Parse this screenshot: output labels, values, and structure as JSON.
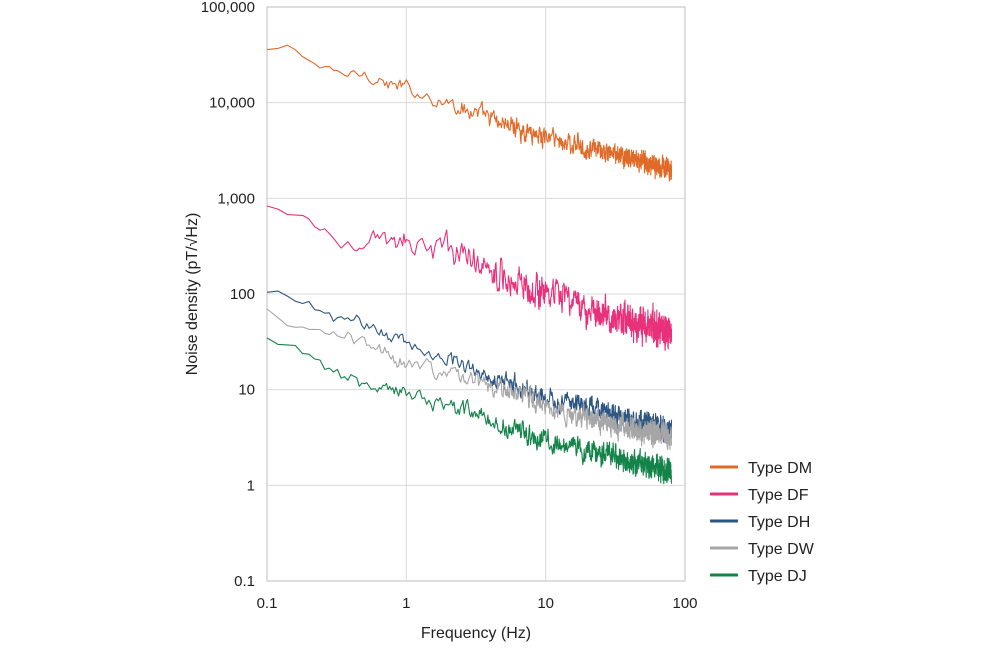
{
  "chart_data": {
    "type": "line",
    "title": "",
    "xlabel": "Frequency (Hz)",
    "ylabel": "Noise density (pT/√Hz)",
    "xscale": "log",
    "yscale": "log",
    "xlim": [
      0.1,
      100
    ],
    "ylim": [
      0.1,
      100000
    ],
    "x_data_max": 80,
    "grid": true,
    "legend_position": "bottom-right-outside",
    "x_ticks": [
      "0.1",
      "1",
      "10",
      "100"
    ],
    "y_ticks": [
      "0.1",
      "1",
      "10",
      "100",
      "1,000",
      "10,000",
      "100,000"
    ],
    "series": [
      {
        "name": "Type DM",
        "color": "#e06a28",
        "noise": 0.22,
        "points": [
          [
            0.1,
            35000
          ],
          [
            0.15,
            38000
          ],
          [
            0.2,
            28000
          ],
          [
            0.3,
            20000
          ],
          [
            0.5,
            20000
          ],
          [
            0.8,
            15000
          ],
          [
            1,
            14000
          ],
          [
            2,
            10000
          ],
          [
            5,
            6000
          ],
          [
            10,
            4500
          ],
          [
            20,
            3300
          ],
          [
            40,
            2600
          ],
          [
            80,
            2000
          ]
        ]
      },
      {
        "name": "Type DF",
        "color": "#e8317a",
        "noise": 0.35,
        "points": [
          [
            0.1,
            800
          ],
          [
            0.15,
            600
          ],
          [
            0.2,
            550
          ],
          [
            0.3,
            400
          ],
          [
            0.5,
            350
          ],
          [
            1,
            330
          ],
          [
            2,
            300
          ],
          [
            5,
            160
          ],
          [
            10,
            100
          ],
          [
            20,
            70
          ],
          [
            40,
            50
          ],
          [
            80,
            40
          ]
        ]
      },
      {
        "name": "Type DH",
        "color": "#2e5684",
        "noise": 0.22,
        "points": [
          [
            0.1,
            100
          ],
          [
            0.2,
            85
          ],
          [
            0.3,
            55
          ],
          [
            0.5,
            50
          ],
          [
            1,
            30
          ],
          [
            2,
            22
          ],
          [
            5,
            12
          ],
          [
            10,
            8.5
          ],
          [
            20,
            6.5
          ],
          [
            40,
            5
          ],
          [
            80,
            3.8
          ]
        ]
      },
      {
        "name": "Type DW",
        "color": "#a6a6a6",
        "noise": 0.25,
        "points": [
          [
            0.1,
            65
          ],
          [
            0.2,
            40
          ],
          [
            0.3,
            38
          ],
          [
            0.5,
            30
          ],
          [
            1,
            20
          ],
          [
            2,
            15
          ],
          [
            5,
            10
          ],
          [
            10,
            7
          ],
          [
            20,
            5
          ],
          [
            40,
            4
          ],
          [
            80,
            3.2
          ]
        ]
      },
      {
        "name": "Type DJ",
        "color": "#14834a",
        "noise": 0.25,
        "points": [
          [
            0.1,
            33
          ],
          [
            0.2,
            22
          ],
          [
            0.3,
            15
          ],
          [
            0.5,
            12
          ],
          [
            1,
            9
          ],
          [
            2,
            7
          ],
          [
            5,
            4.2
          ],
          [
            10,
            3
          ],
          [
            20,
            2.3
          ],
          [
            40,
            1.8
          ],
          [
            80,
            1.4
          ]
        ]
      }
    ]
  }
}
